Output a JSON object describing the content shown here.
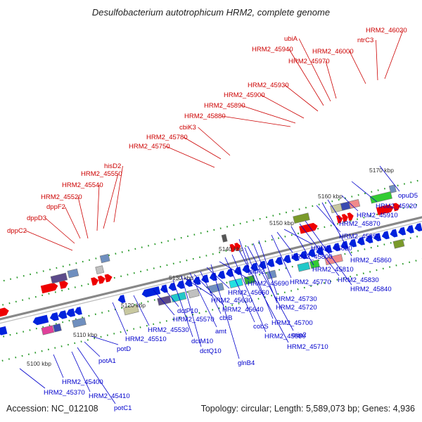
{
  "title": "Desulfobacterium autotrophicum HRM2, complete genome",
  "footer": {
    "accession": "Accession: NC_012108",
    "topology": "Topology: circular; Length: 5,589,073 bp; Genes: 4,936"
  },
  "colors": {
    "top_strand_label": "#cc0000",
    "bottom_strand_label": "#0000cc",
    "backbone": "#888888",
    "dots": "#2a9a2a"
  },
  "ticks": [
    "5100 kbp",
    "5110 kbp",
    "5120 kbp",
    "5130 kbp",
    "5140 kbp",
    "5150 kbp",
    "5160 kbp",
    "5170 kbp"
  ],
  "labels_top": [
    "dppC2",
    "dppD3",
    "dppF2",
    "HRM2_45520",
    "HRM2_45540",
    "HRM2_45550",
    "hisD2",
    "HRM2_45750",
    "HRM2_45780",
    "cbiK3",
    "HRM2_45880",
    "HRM2_45890",
    "HRM2_45900",
    "HRM2_45930",
    "HRM2_45940",
    "ubiA",
    "HRM2_45970",
    "HRM2_46000",
    "ntrC3",
    "HRM2_46020"
  ],
  "labels_bottom": [
    "HRM2_45370",
    "HRM2_45400",
    "HRM2_45410",
    "potC1",
    "potA1",
    "potD",
    "HRM2_45510",
    "HRM2_45530",
    "HRM2_45570",
    "dctP10",
    "dctM10",
    "dctQ10",
    "amt",
    "HRM2_45630",
    "HRM2_45640",
    "cbiB",
    "HRM2_45660",
    "HRM2_45690",
    "glnB4",
    "cobS",
    "HRM2_45680",
    "HRM2_45710",
    "HRM2_45700",
    "mip2",
    "HRM2_45720",
    "HRM2_45730",
    "glnA2",
    "HRM2_45770",
    "HRM2_45800",
    "HRM2_45820",
    "HRM2_45810",
    "HRM2_45850",
    "HRM2_45830",
    "HRM2_45840",
    "HRM2_45860",
    "HRM2_45870",
    "HRM2_45910",
    "HRM2_45920",
    "opuD5"
  ]
}
